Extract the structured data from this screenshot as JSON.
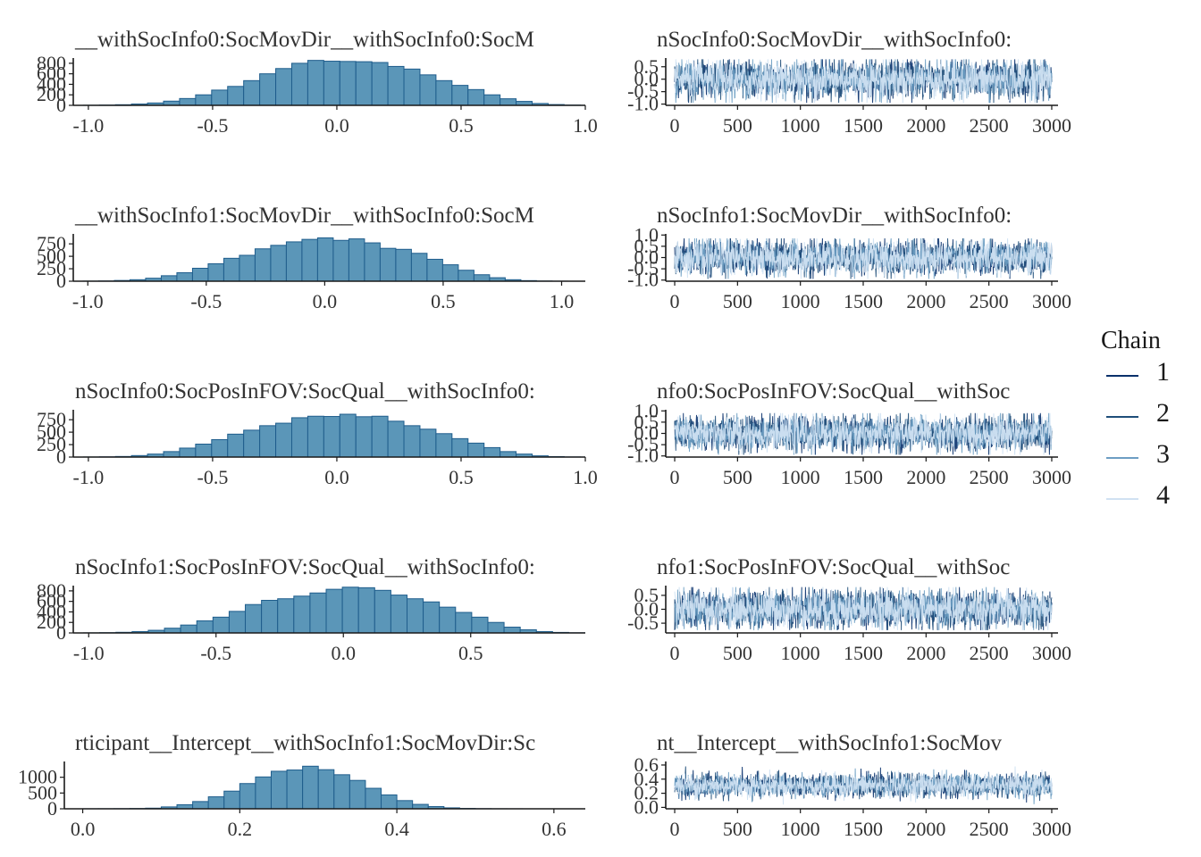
{
  "chart_data": [
    {
      "type": "bar",
      "subtype": "histogram",
      "title": "__withSocInfo0:SocMovDir__withSocInfo0:SocM",
      "xlim": [
        -1.05,
        1.0
      ],
      "ylim": [
        0,
        900
      ],
      "xticks": [
        -1.0,
        -0.5,
        0.0,
        0.5,
        1.0
      ],
      "xtick_labels": [
        "-1.0",
        "-0.5",
        "0.0",
        "0.5",
        "1.0"
      ],
      "yticks": [
        0,
        200,
        400,
        600,
        800
      ],
      "ytick_labels": [
        "0",
        "200",
        "400",
        "600",
        "800"
      ],
      "bin_width": 0.0645,
      "bin_start": -1.02,
      "values": [
        2,
        5,
        12,
        25,
        45,
        80,
        130,
        200,
        290,
        360,
        470,
        600,
        700,
        800,
        855,
        840,
        835,
        830,
        815,
        740,
        690,
        580,
        470,
        380,
        300,
        200,
        125,
        75,
        35,
        15,
        5,
        2
      ]
    },
    {
      "type": "line",
      "subtype": "trace",
      "title": "nSocInfo0:SocMovDir__withSocInfo0:",
      "xlim": [
        -50,
        3050
      ],
      "ylim": [
        -1.05,
        0.85
      ],
      "xticks": [
        0,
        500,
        1000,
        1500,
        2000,
        2500,
        3000
      ],
      "xtick_labels": [
        "0",
        "500",
        "1000",
        "1500",
        "2000",
        "2500",
        "3000"
      ],
      "yticks": [
        -1.0,
        -0.5,
        0.0,
        0.5
      ],
      "ytick_labels": [
        "-1.0",
        "-0.5",
        "0.0",
        "0.5"
      ],
      "iterations": 3000,
      "center": 0.0,
      "spread": 0.37,
      "lo": -0.95,
      "hi": 0.8
    },
    {
      "type": "bar",
      "subtype": "histogram",
      "title": "__withSocInfo1:SocMovDir__withSocInfo0:SocM",
      "xlim": [
        -1.05,
        1.1
      ],
      "ylim": [
        0,
        950
      ],
      "xticks": [
        -1.0,
        -0.5,
        0.0,
        0.5,
        1.0
      ],
      "xtick_labels": [
        "-1.0",
        "-0.5",
        "0.0",
        "0.5",
        "1.0"
      ],
      "yticks": [
        0,
        250,
        500,
        750
      ],
      "ytick_labels": [
        "0",
        "250",
        "500",
        "750"
      ],
      "bin_width": 0.066,
      "bin_start": -1.02,
      "values": [
        2,
        5,
        15,
        30,
        60,
        110,
        170,
        260,
        350,
        460,
        520,
        650,
        720,
        790,
        840,
        870,
        820,
        850,
        770,
        660,
        640,
        560,
        440,
        330,
        220,
        130,
        70,
        30,
        12,
        4,
        1
      ]
    },
    {
      "type": "line",
      "subtype": "trace",
      "title": "nSocInfo1:SocMovDir__withSocInfo0:",
      "xlim": [
        -50,
        3050
      ],
      "ylim": [
        -1.05,
        1.05
      ],
      "xticks": [
        0,
        500,
        1000,
        1500,
        2000,
        2500,
        3000
      ],
      "xtick_labels": [
        "0",
        "500",
        "1000",
        "1500",
        "2000",
        "2500",
        "3000"
      ],
      "yticks": [
        -1.0,
        -0.5,
        0.0,
        0.5,
        1.0
      ],
      "ytick_labels": [
        "-1.0",
        "-0.5",
        "0.0",
        "0.5",
        "1.0"
      ],
      "iterations": 3000,
      "center": 0.0,
      "spread": 0.37,
      "lo": -0.95,
      "hi": 0.85
    },
    {
      "type": "bar",
      "subtype": "histogram",
      "title": "nSocInfo0:SocPosInFOV:SocQual__withSocInfo0:",
      "xlim": [
        -1.05,
        1.0
      ],
      "ylim": [
        0,
        950
      ],
      "xticks": [
        -1.0,
        -0.5,
        0.0,
        0.5,
        1.0
      ],
      "xtick_labels": [
        "-1.0",
        "-0.5",
        "0.0",
        "0.5",
        "1.0"
      ],
      "yticks": [
        0,
        250,
        500,
        750
      ],
      "ytick_labels": [
        "0",
        "250",
        "500",
        "750"
      ],
      "bin_width": 0.0645,
      "bin_start": -1.02,
      "values": [
        2,
        5,
        12,
        30,
        60,
        110,
        180,
        260,
        350,
        460,
        540,
        630,
        680,
        790,
        820,
        815,
        860,
        810,
        820,
        720,
        630,
        560,
        470,
        370,
        280,
        190,
        110,
        60,
        25,
        10,
        3,
        1
      ]
    },
    {
      "type": "line",
      "subtype": "trace",
      "title": "nfo0:SocPosInFOV:SocQual__withSoc",
      "xlim": [
        -50,
        3050
      ],
      "ylim": [
        -1.05,
        1.05
      ],
      "xticks": [
        0,
        500,
        1000,
        1500,
        2000,
        2500,
        3000
      ],
      "xtick_labels": [
        "0",
        "500",
        "1000",
        "1500",
        "2000",
        "2500",
        "3000"
      ],
      "yticks": [
        -1.0,
        -0.5,
        0.0,
        0.5,
        1.0
      ],
      "ytick_labels": [
        "-1.0",
        "-0.5",
        "0.0",
        "0.5",
        "1.0"
      ],
      "iterations": 3000,
      "center": 0.0,
      "spread": 0.37,
      "lo": -0.95,
      "hi": 0.9
    },
    {
      "type": "bar",
      "subtype": "histogram",
      "title": "nSocInfo1:SocPosInFOV:SocQual__withSocInfo0:",
      "xlim": [
        -1.05,
        0.95
      ],
      "ylim": [
        0,
        900
      ],
      "xticks": [
        -1.0,
        -0.5,
        0.0,
        0.5
      ],
      "xtick_labels": [
        "-1.0",
        "-0.5",
        "0.0",
        "0.5"
      ],
      "yticks": [
        0,
        200,
        400,
        600,
        800
      ],
      "ytick_labels": [
        "0",
        "200",
        "400",
        "600",
        "800"
      ],
      "bin_width": 0.0635,
      "bin_start": -1.02,
      "values": [
        2,
        5,
        12,
        25,
        50,
        90,
        150,
        230,
        300,
        410,
        540,
        620,
        650,
        700,
        760,
        830,
        870,
        860,
        810,
        720,
        650,
        590,
        490,
        390,
        300,
        200,
        110,
        60,
        25,
        10,
        3,
        1
      ]
    },
    {
      "type": "line",
      "subtype": "trace",
      "title": "nfo1:SocPosInFOV:SocQual__withSoc",
      "xlim": [
        -50,
        3050
      ],
      "ylim": [
        -0.85,
        0.85
      ],
      "xticks": [
        0,
        500,
        1000,
        1500,
        2000,
        2500,
        3000
      ],
      "xtick_labels": [
        "0",
        "500",
        "1000",
        "1500",
        "2000",
        "2500",
        "3000"
      ],
      "yticks": [
        -0.5,
        0.0,
        0.5
      ],
      "ytick_labels": [
        "-0.5",
        "0.0",
        "0.5"
      ],
      "iterations": 3000,
      "center": 0.0,
      "spread": 0.33,
      "lo": -0.75,
      "hi": 0.8
    },
    {
      "type": "bar",
      "subtype": "histogram",
      "title": "rticipant__Intercept__withSocInfo1:SocMovDir:Sc",
      "xlim": [
        -0.02,
        0.64
      ],
      "ylim": [
        0,
        1500
      ],
      "xticks": [
        0.0,
        0.2,
        0.4,
        0.6
      ],
      "xtick_labels": [
        "0.0",
        "0.2",
        "0.4",
        "0.6"
      ],
      "yticks": [
        0,
        500,
        1000
      ],
      "ytick_labels": [
        "0",
        "500",
        "1000"
      ],
      "bin_width": 0.02,
      "bin_start": 0.0,
      "values": [
        2,
        3,
        5,
        10,
        20,
        60,
        130,
        230,
        380,
        560,
        800,
        1010,
        1190,
        1230,
        1350,
        1240,
        1080,
        900,
        650,
        440,
        260,
        140,
        70,
        30,
        12,
        5,
        2,
        1
      ]
    },
    {
      "type": "line",
      "subtype": "trace",
      "title": "nt__Intercept__withSocInfo1:SocMov",
      "xlim": [
        -50,
        3050
      ],
      "ylim": [
        -0.02,
        0.65
      ],
      "xticks": [
        0,
        500,
        1000,
        1500,
        2000,
        2500,
        3000
      ],
      "xtick_labels": [
        "0",
        "500",
        "1000",
        "1500",
        "2000",
        "2500",
        "3000"
      ],
      "yticks": [
        0.0,
        0.2,
        0.4,
        0.6
      ],
      "ytick_labels": [
        "0.0",
        "0.2",
        "0.4",
        "0.6"
      ],
      "iterations": 3000,
      "center": 0.31,
      "spread": 0.08,
      "lo": 0.02,
      "hi": 0.58
    }
  ],
  "legend": {
    "title": "Chain",
    "items": [
      {
        "label": "1",
        "color": "#08306b"
      },
      {
        "label": "2",
        "color": "#1f4e79"
      },
      {
        "label": "3",
        "color": "#6d9ec3"
      },
      {
        "label": "4",
        "color": "#d0e1f2"
      }
    ]
  },
  "colors": {
    "hist_fill": "#5b96b8",
    "hist_edge": "#1f5d8c",
    "axis": "#1a1a1a"
  }
}
